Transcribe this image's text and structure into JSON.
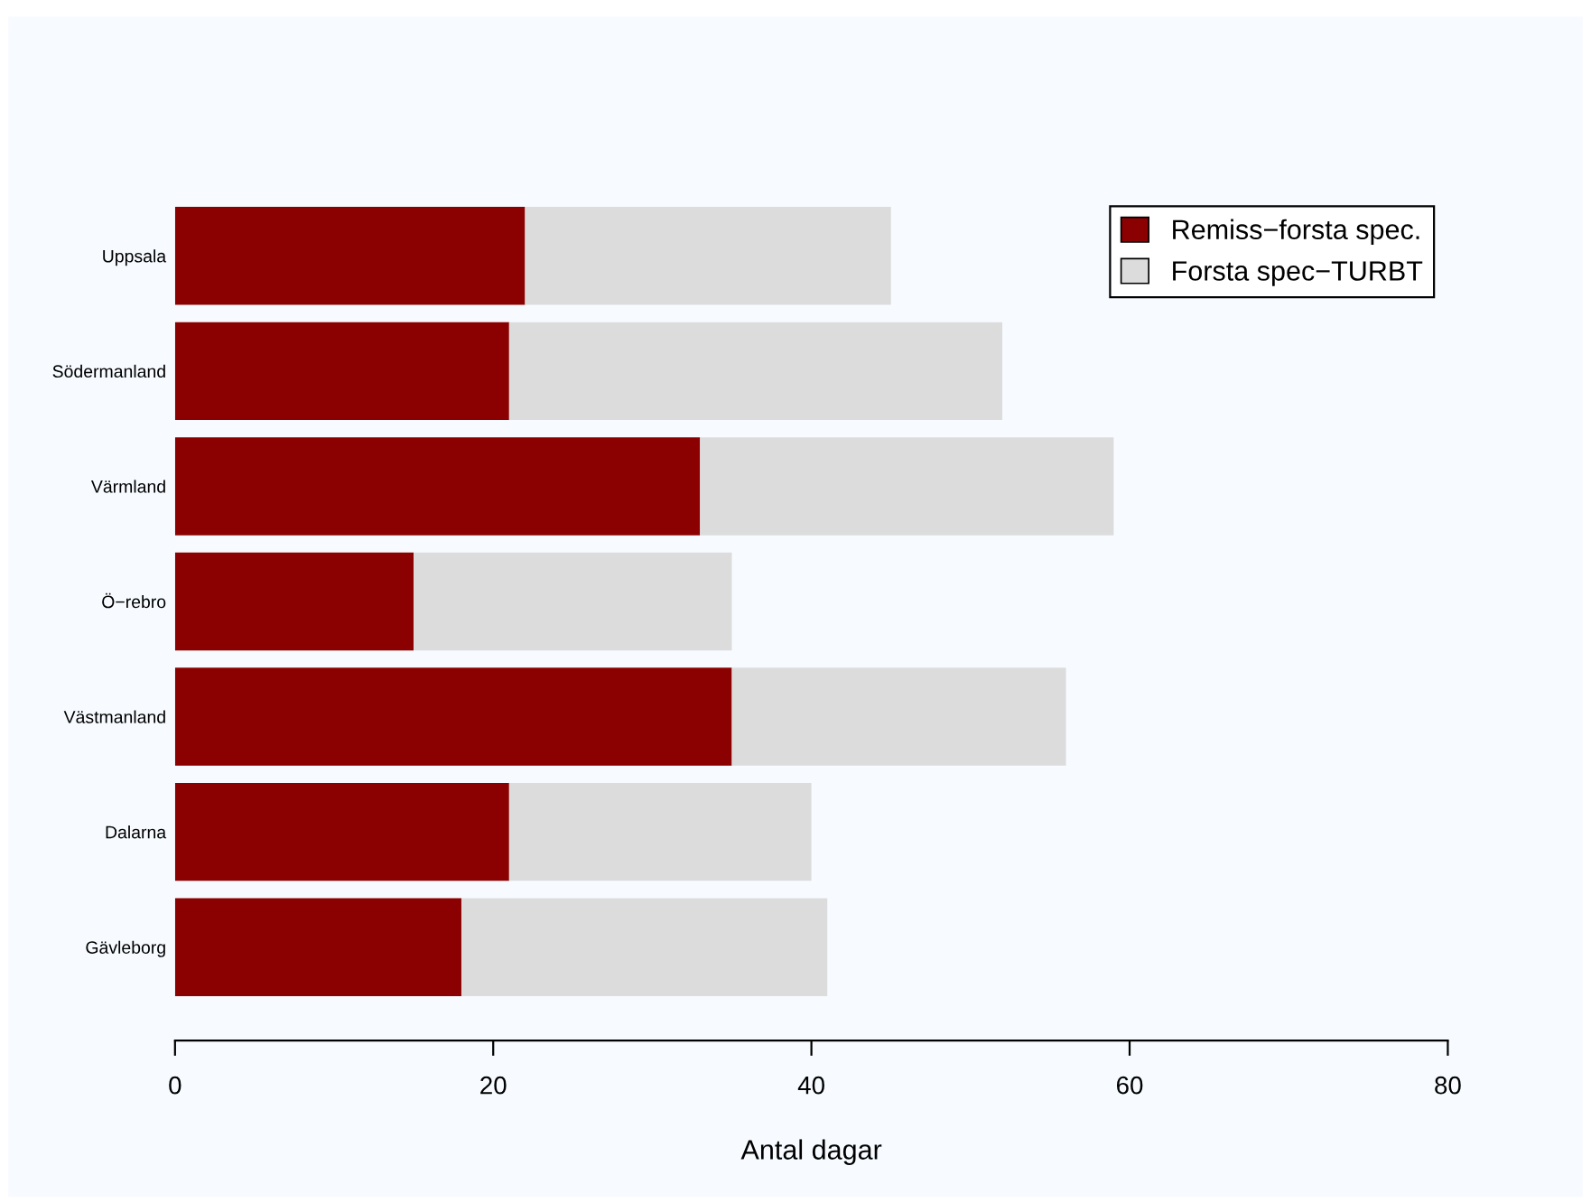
{
  "chart_data": {
    "type": "bar",
    "orientation": "horizontal",
    "stacked": true,
    "xlabel": "Antal dagar",
    "categories": [
      "Uppsala",
      "Södermanland",
      "Värmland",
      "Ö−rebro",
      "Västmanland",
      "Dalarna",
      "Gävleborg"
    ],
    "series": [
      {
        "name": "Remiss−forsta spec.",
        "color": "#8b0000",
        "values": [
          22,
          21,
          33,
          15,
          35,
          21,
          18
        ]
      },
      {
        "name": "Forsta spec−TURBT",
        "color": "#dcdcdc",
        "values": [
          23,
          31,
          26,
          20,
          21,
          19,
          23
        ]
      }
    ],
    "xlim": [
      0,
      80
    ],
    "xticks": [
      0,
      20,
      40,
      60,
      80
    ],
    "grid": false,
    "legend": "top right"
  }
}
